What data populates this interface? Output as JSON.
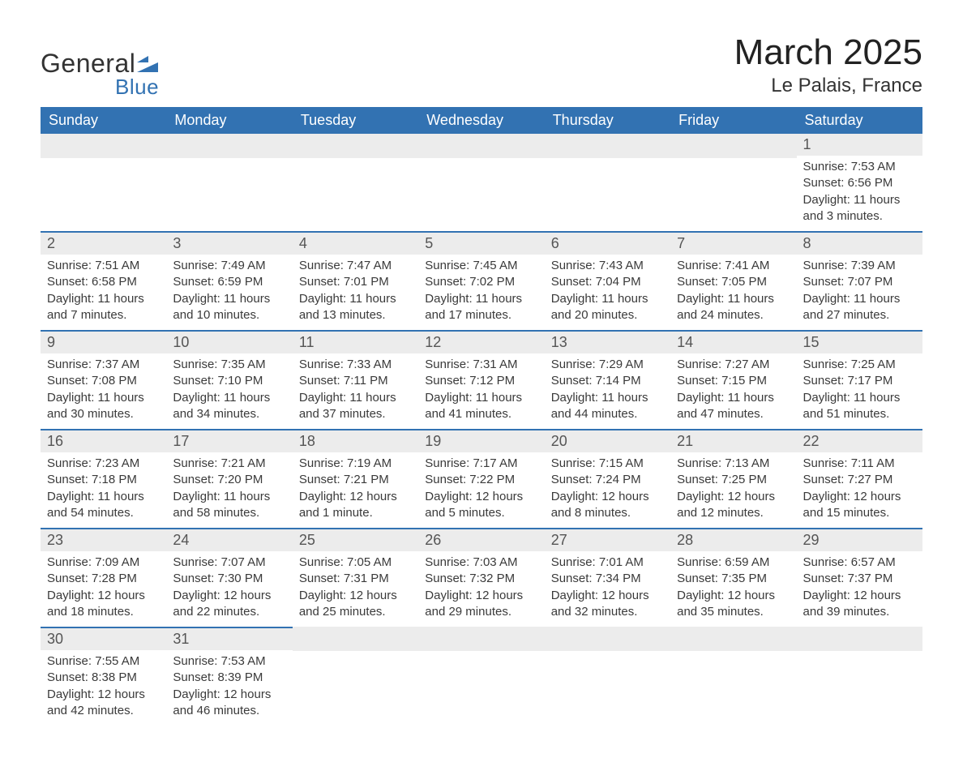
{
  "logo": {
    "text1": "General",
    "text2": "Blue",
    "shape_color": "#3272b2"
  },
  "title": "March 2025",
  "location": "Le Palais, France",
  "colors": {
    "header_bg": "#3272b2",
    "header_text": "#ffffff",
    "daynum_bg": "#ececec",
    "row_border": "#3272b2",
    "body_text": "#3a3a3a"
  },
  "typography": {
    "title_fontsize": 44,
    "location_fontsize": 24,
    "header_fontsize": 18,
    "daynum_fontsize": 18,
    "body_fontsize": 15
  },
  "weekdays": [
    "Sunday",
    "Monday",
    "Tuesday",
    "Wednesday",
    "Thursday",
    "Friday",
    "Saturday"
  ],
  "weeks": [
    [
      null,
      null,
      null,
      null,
      null,
      null,
      {
        "n": "1",
        "sunrise": "Sunrise: 7:53 AM",
        "sunset": "Sunset: 6:56 PM",
        "daylight": "Daylight: 11 hours and 3 minutes."
      }
    ],
    [
      {
        "n": "2",
        "sunrise": "Sunrise: 7:51 AM",
        "sunset": "Sunset: 6:58 PM",
        "daylight": "Daylight: 11 hours and 7 minutes."
      },
      {
        "n": "3",
        "sunrise": "Sunrise: 7:49 AM",
        "sunset": "Sunset: 6:59 PM",
        "daylight": "Daylight: 11 hours and 10 minutes."
      },
      {
        "n": "4",
        "sunrise": "Sunrise: 7:47 AM",
        "sunset": "Sunset: 7:01 PM",
        "daylight": "Daylight: 11 hours and 13 minutes."
      },
      {
        "n": "5",
        "sunrise": "Sunrise: 7:45 AM",
        "sunset": "Sunset: 7:02 PM",
        "daylight": "Daylight: 11 hours and 17 minutes."
      },
      {
        "n": "6",
        "sunrise": "Sunrise: 7:43 AM",
        "sunset": "Sunset: 7:04 PM",
        "daylight": "Daylight: 11 hours and 20 minutes."
      },
      {
        "n": "7",
        "sunrise": "Sunrise: 7:41 AM",
        "sunset": "Sunset: 7:05 PM",
        "daylight": "Daylight: 11 hours and 24 minutes."
      },
      {
        "n": "8",
        "sunrise": "Sunrise: 7:39 AM",
        "sunset": "Sunset: 7:07 PM",
        "daylight": "Daylight: 11 hours and 27 minutes."
      }
    ],
    [
      {
        "n": "9",
        "sunrise": "Sunrise: 7:37 AM",
        "sunset": "Sunset: 7:08 PM",
        "daylight": "Daylight: 11 hours and 30 minutes."
      },
      {
        "n": "10",
        "sunrise": "Sunrise: 7:35 AM",
        "sunset": "Sunset: 7:10 PM",
        "daylight": "Daylight: 11 hours and 34 minutes."
      },
      {
        "n": "11",
        "sunrise": "Sunrise: 7:33 AM",
        "sunset": "Sunset: 7:11 PM",
        "daylight": "Daylight: 11 hours and 37 minutes."
      },
      {
        "n": "12",
        "sunrise": "Sunrise: 7:31 AM",
        "sunset": "Sunset: 7:12 PM",
        "daylight": "Daylight: 11 hours and 41 minutes."
      },
      {
        "n": "13",
        "sunrise": "Sunrise: 7:29 AM",
        "sunset": "Sunset: 7:14 PM",
        "daylight": "Daylight: 11 hours and 44 minutes."
      },
      {
        "n": "14",
        "sunrise": "Sunrise: 7:27 AM",
        "sunset": "Sunset: 7:15 PM",
        "daylight": "Daylight: 11 hours and 47 minutes."
      },
      {
        "n": "15",
        "sunrise": "Sunrise: 7:25 AM",
        "sunset": "Sunset: 7:17 PM",
        "daylight": "Daylight: 11 hours and 51 minutes."
      }
    ],
    [
      {
        "n": "16",
        "sunrise": "Sunrise: 7:23 AM",
        "sunset": "Sunset: 7:18 PM",
        "daylight": "Daylight: 11 hours and 54 minutes."
      },
      {
        "n": "17",
        "sunrise": "Sunrise: 7:21 AM",
        "sunset": "Sunset: 7:20 PM",
        "daylight": "Daylight: 11 hours and 58 minutes."
      },
      {
        "n": "18",
        "sunrise": "Sunrise: 7:19 AM",
        "sunset": "Sunset: 7:21 PM",
        "daylight": "Daylight: 12 hours and 1 minute."
      },
      {
        "n": "19",
        "sunrise": "Sunrise: 7:17 AM",
        "sunset": "Sunset: 7:22 PM",
        "daylight": "Daylight: 12 hours and 5 minutes."
      },
      {
        "n": "20",
        "sunrise": "Sunrise: 7:15 AM",
        "sunset": "Sunset: 7:24 PM",
        "daylight": "Daylight: 12 hours and 8 minutes."
      },
      {
        "n": "21",
        "sunrise": "Sunrise: 7:13 AM",
        "sunset": "Sunset: 7:25 PM",
        "daylight": "Daylight: 12 hours and 12 minutes."
      },
      {
        "n": "22",
        "sunrise": "Sunrise: 7:11 AM",
        "sunset": "Sunset: 7:27 PM",
        "daylight": "Daylight: 12 hours and 15 minutes."
      }
    ],
    [
      {
        "n": "23",
        "sunrise": "Sunrise: 7:09 AM",
        "sunset": "Sunset: 7:28 PM",
        "daylight": "Daylight: 12 hours and 18 minutes."
      },
      {
        "n": "24",
        "sunrise": "Sunrise: 7:07 AM",
        "sunset": "Sunset: 7:30 PM",
        "daylight": "Daylight: 12 hours and 22 minutes."
      },
      {
        "n": "25",
        "sunrise": "Sunrise: 7:05 AM",
        "sunset": "Sunset: 7:31 PM",
        "daylight": "Daylight: 12 hours and 25 minutes."
      },
      {
        "n": "26",
        "sunrise": "Sunrise: 7:03 AM",
        "sunset": "Sunset: 7:32 PM",
        "daylight": "Daylight: 12 hours and 29 minutes."
      },
      {
        "n": "27",
        "sunrise": "Sunrise: 7:01 AM",
        "sunset": "Sunset: 7:34 PM",
        "daylight": "Daylight: 12 hours and 32 minutes."
      },
      {
        "n": "28",
        "sunrise": "Sunrise: 6:59 AM",
        "sunset": "Sunset: 7:35 PM",
        "daylight": "Daylight: 12 hours and 35 minutes."
      },
      {
        "n": "29",
        "sunrise": "Sunrise: 6:57 AM",
        "sunset": "Sunset: 7:37 PM",
        "daylight": "Daylight: 12 hours and 39 minutes."
      }
    ],
    [
      {
        "n": "30",
        "sunrise": "Sunrise: 7:55 AM",
        "sunset": "Sunset: 8:38 PM",
        "daylight": "Daylight: 12 hours and 42 minutes."
      },
      {
        "n": "31",
        "sunrise": "Sunrise: 7:53 AM",
        "sunset": "Sunset: 8:39 PM",
        "daylight": "Daylight: 12 hours and 46 minutes."
      },
      null,
      null,
      null,
      null,
      null
    ]
  ]
}
